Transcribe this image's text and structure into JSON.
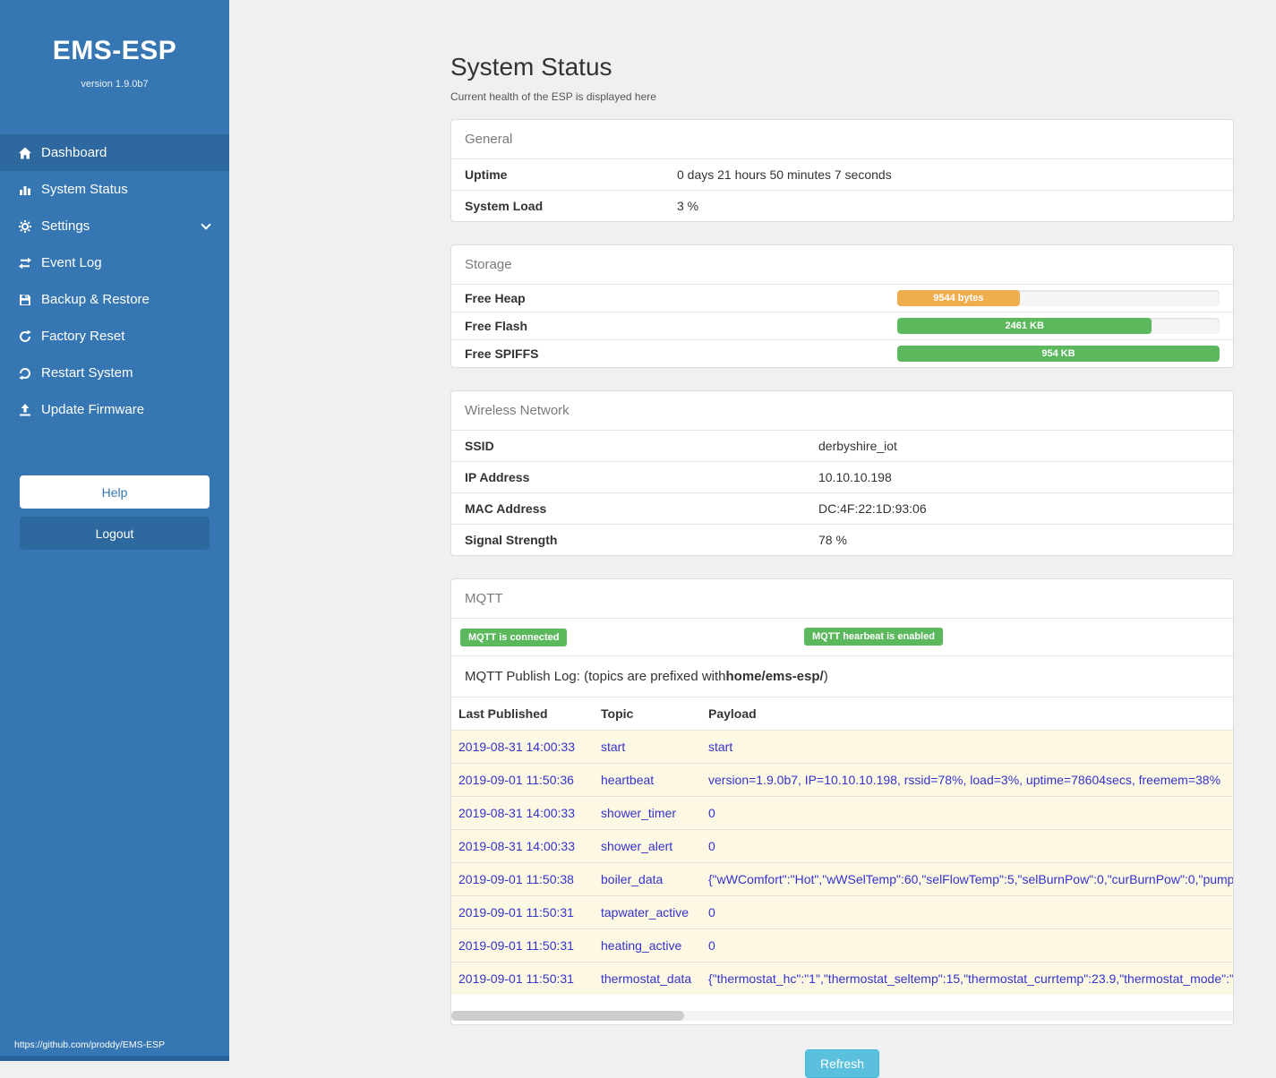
{
  "sidebar": {
    "title": "EMS-ESP",
    "version": "version 1.9.0b7",
    "items": [
      {
        "label": "Dashboard",
        "icon": "home-icon",
        "active": true
      },
      {
        "label": "System Status",
        "icon": "chart-icon"
      },
      {
        "label": "Settings",
        "icon": "gear-icon",
        "chevron": "down"
      },
      {
        "label": "Event Log",
        "icon": "exchange-icon"
      },
      {
        "label": "Backup & Restore",
        "icon": "save-icon"
      },
      {
        "label": "Factory Reset",
        "icon": "reset-icon"
      },
      {
        "label": "Restart System",
        "icon": "restart-icon"
      },
      {
        "label": "Update Firmware",
        "icon": "upload-icon"
      }
    ],
    "help_label": "Help",
    "logout_label": "Logout",
    "footer_link": "https://github.com/proddy/EMS-ESP"
  },
  "page": {
    "title": "System Status",
    "subtitle": "Current health of the ESP is displayed here"
  },
  "general": {
    "heading": "General",
    "rows": [
      {
        "label": "Uptime",
        "value": "0 days 21 hours 50 minutes 7 seconds"
      },
      {
        "label": "System Load",
        "value": "3 %"
      }
    ]
  },
  "storage": {
    "heading": "Storage",
    "rows": [
      {
        "label": "Free Heap",
        "bar_label": "9544 bytes",
        "percent": 38,
        "color": "#f0ad4e"
      },
      {
        "label": "Free Flash",
        "bar_label": "2461 KB",
        "percent": 79,
        "color": "#5cb85c"
      },
      {
        "label": "Free SPIFFS",
        "bar_label": "954 KB",
        "percent": 100,
        "color": "#5cb85c"
      }
    ]
  },
  "wireless": {
    "heading": "Wireless Network",
    "rows": [
      {
        "label": "SSID",
        "value": "derbyshire_iot"
      },
      {
        "label": "IP Address",
        "value": "10.10.10.198"
      },
      {
        "label": "MAC Address",
        "value": "DC:4F:22:1D:93:06"
      },
      {
        "label": "Signal Strength",
        "value": "78 %"
      }
    ]
  },
  "mqtt": {
    "heading": "MQTT",
    "badges": [
      "MQTT is connected",
      "MQTT hearbeat is enabled"
    ],
    "log_title_prefix": "MQTT Publish Log: (topics are prefixed with ",
    "log_title_bold": "home/ems-esp/",
    "log_title_suffix": ")",
    "columns": [
      "Last Published",
      "Topic",
      "Payload"
    ],
    "rows": [
      {
        "time": "2019-08-31 14:00:33",
        "topic": "start",
        "payload": "start"
      },
      {
        "time": "2019-09-01 11:50:36",
        "topic": "heartbeat",
        "payload": "version=1.9.0b7, IP=10.10.10.198, rssid=78%, load=3%, uptime=78604secs, freemem=38%"
      },
      {
        "time": "2019-08-31 14:00:33",
        "topic": "shower_timer",
        "payload": "0"
      },
      {
        "time": "2019-08-31 14:00:33",
        "topic": "shower_alert",
        "payload": "0"
      },
      {
        "time": "2019-09-01 11:50:38",
        "topic": "boiler_data",
        "payload": "{\"wWComfort\":\"Hot\",\"wWSelTemp\":60,\"selFlowTemp\":5,\"selBurnPow\":0,\"curBurnPow\":0,\"pump"
      },
      {
        "time": "2019-09-01 11:50:31",
        "topic": "tapwater_active",
        "payload": "0"
      },
      {
        "time": "2019-09-01 11:50:31",
        "topic": "heating_active",
        "payload": "0"
      },
      {
        "time": "2019-09-01 11:50:31",
        "topic": "thermostat_data",
        "payload": "{\"thermostat_hc\":\"1\",\"thermostat_seltemp\":15,\"thermostat_currtemp\":23.9,\"thermostat_mode\":\""
      }
    ]
  },
  "refresh_label": "Refresh",
  "colors": {
    "sidebar_bg": "#3677b3",
    "sidebar_active_bg": "#2d689e",
    "badge_green": "#5cb85c",
    "bar_orange": "#f0ad4e",
    "bar_green": "#5cb85c",
    "refresh_blue": "#5bc0de",
    "log_row_yellow": "#fcf8e3"
  }
}
